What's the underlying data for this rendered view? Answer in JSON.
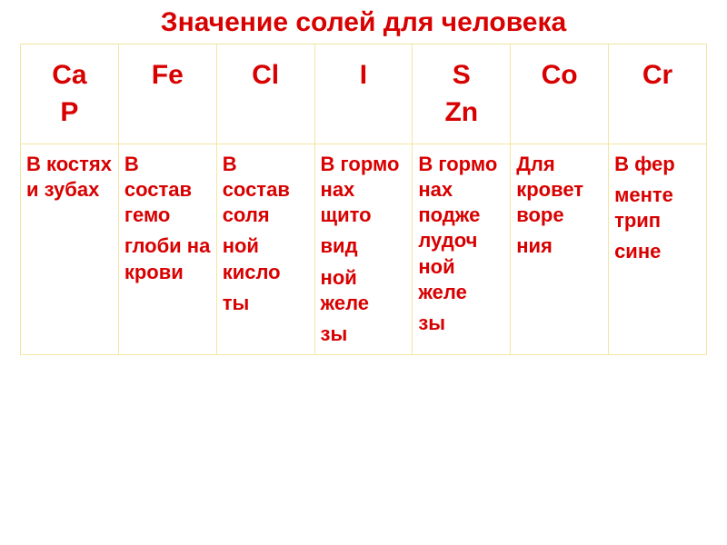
{
  "title": "Значение солей для человека",
  "title_color": "#d80000",
  "title_fontsize": 30,
  "table": {
    "border_color": "#f3e6a0",
    "border_width": 1,
    "header": {
      "text_color": "#d80000",
      "fontsize": 30,
      "cells": [
        {
          "lines": [
            "Ca",
            "P"
          ]
        },
        {
          "lines": [
            "Fe"
          ]
        },
        {
          "lines": [
            "Cl"
          ]
        },
        {
          "lines": [
            "I"
          ]
        },
        {
          "lines": [
            "S",
            "Zn"
          ]
        },
        {
          "lines": [
            "Co"
          ]
        },
        {
          "lines": [
            "Cr"
          ]
        }
      ]
    },
    "descriptions": {
      "text_color": "#d80000",
      "fontsize": 22,
      "cells": [
        {
          "lines": [
            "В костях и зубах"
          ]
        },
        {
          "lines": [
            "В состав гемо",
            "глоби на крови"
          ]
        },
        {
          "lines": [
            "В состав соля",
            "ной кисло",
            "ты"
          ]
        },
        {
          "lines": [
            "В гормо нах щито",
            "вид",
            "ной желе",
            "зы"
          ]
        },
        {
          "lines": [
            "В гормо нах подже лудоч ной желе",
            "зы"
          ]
        },
        {
          "lines": [
            "Для кровет воре",
            "ния"
          ]
        },
        {
          "lines": [
            "В фер",
            "менте трип",
            "сине"
          ]
        }
      ]
    }
  }
}
